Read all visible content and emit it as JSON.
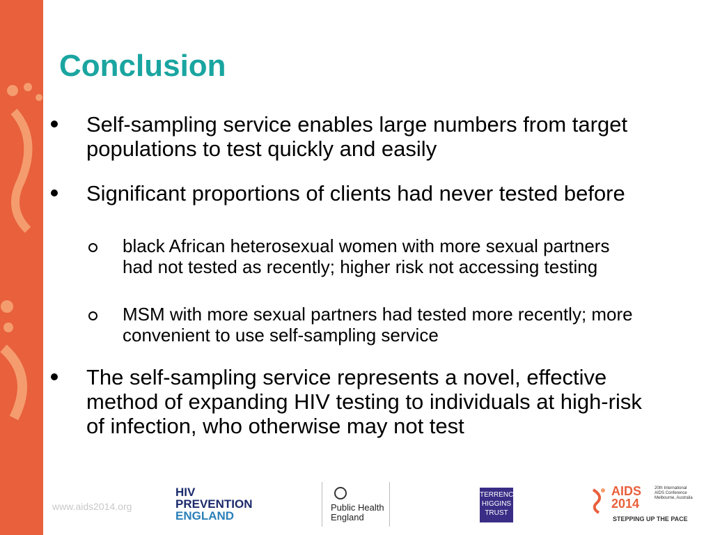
{
  "title": "Conclusion",
  "bullets": [
    {
      "text": "Self-sampling service enables large numbers from target populations to test quickly and easily",
      "sub": []
    },
    {
      "text": "Significant proportions of clients had never tested before",
      "sub": [
        "black African heterosexual women with more sexual partners had not tested as recently; higher risk not accessing testing",
        "MSM with more sexual partners had tested more recently; more convenient to use self-sampling service"
      ]
    },
    {
      "text": "The self-sampling service represents a novel, effective method of expanding HIV testing to individuals at high-risk of infection, who otherwise may not test",
      "sub": []
    }
  ],
  "footer": {
    "url": "www.aids2014.org",
    "hiv_logo": [
      "HIV",
      "PREVENTION",
      "ENGLAND"
    ],
    "phe_logo": [
      "Public Health",
      "England"
    ],
    "tht_logo": [
      "TERRENCE",
      "HIGGINS",
      "TRUST"
    ],
    "aids_logo": {
      "name": "AIDS",
      "year": "2014",
      "info": [
        "20th International",
        "AIDS Conference",
        "Melbourne, Australia"
      ],
      "tagline": "STEPPING UP THE PACE"
    }
  }
}
